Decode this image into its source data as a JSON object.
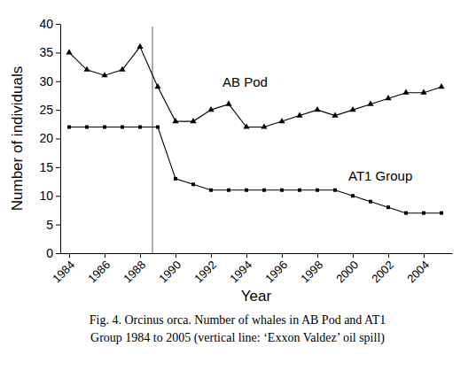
{
  "chart_data": {
    "type": "line",
    "title": [
      "Fig. 4. Orcinus orca. Number of whales in AB Pod and AT1",
      "Group 1984 to 2005 (vertical line: ‘Exxon Valdez’ oil spill)"
    ],
    "x_label": "Year",
    "y_label": "Number of individuals",
    "x": [
      1984,
      1985,
      1986,
      1987,
      1988,
      1989,
      1990,
      1991,
      1992,
      1993,
      1994,
      1995,
      1996,
      1997,
      1998,
      1999,
      2000,
      2001,
      2002,
      2003,
      2004,
      2005
    ],
    "series": [
      {
        "name": "AB Pod",
        "color": "#000000",
        "marker": "triangle",
        "line_style": "solid",
        "values": [
          35,
          32,
          31,
          32,
          36,
          29,
          23,
          23,
          25,
          26,
          22,
          22,
          23,
          24,
          25,
          24,
          25,
          26,
          27,
          28,
          28,
          29
        ]
      },
      {
        "name": "AT1 Group",
        "color": "#000000",
        "marker": "square",
        "line_style": "solid",
        "values": [
          22,
          22,
          22,
          22,
          22,
          22,
          13,
          12,
          11,
          11,
          11,
          11,
          11,
          11,
          11,
          11,
          10,
          9,
          8,
          7,
          7,
          7
        ]
      }
    ],
    "vline": 1988.7,
    "xlim": [
      1983.5,
      2005.6
    ],
    "xticks": [
      1984,
      1986,
      1988,
      1990,
      1992,
      1994,
      1996,
      1998,
      2000,
      2002,
      2004
    ],
    "ylim": [
      0,
      40
    ],
    "yticks": [
      0,
      5,
      10,
      15,
      20,
      25,
      30,
      35,
      40
    ],
    "grid": false
  }
}
